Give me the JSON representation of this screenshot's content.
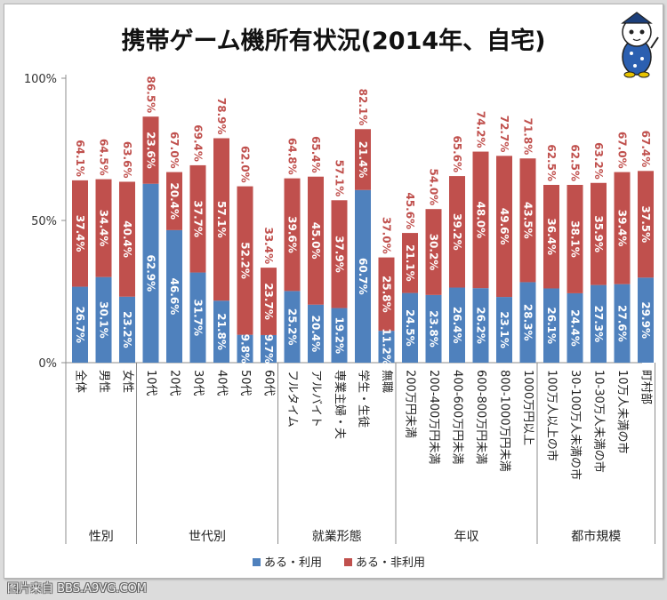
{
  "chart_data": {
    "type": "bar",
    "stacked": true,
    "title": "携帯ゲーム機所有状況(2014年、自宅)",
    "y_axis": {
      "ticks": [
        "100%",
        "50%",
        "0%"
      ],
      "ylim": [
        0,
        100
      ]
    },
    "series": [
      {
        "name": "ある・利用",
        "color": "#4f81bd"
      },
      {
        "name": "ある・非利用",
        "color": "#c0504d"
      }
    ],
    "categories": [
      "全体",
      "男性",
      "女性",
      "10代",
      "20代",
      "30代",
      "40代",
      "50代",
      "60代",
      "フルタイム",
      "アルバイト",
      "専業主婦・夫",
      "学生・生徒",
      "無職",
      "200万円未満",
      "200-400万円未満",
      "400-600万円未満",
      "600-800万円未満",
      "800-1000万円未満",
      "1000万円以上",
      "100万人以上の市",
      "30-100万人未満の市",
      "10-30万人未満の市",
      "10万人未満の市",
      "町村部"
    ],
    "values_use": [
      26.7,
      30.1,
      23.2,
      62.9,
      46.6,
      31.7,
      21.8,
      9.8,
      9.7,
      25.2,
      20.4,
      19.2,
      60.7,
      11.2,
      24.5,
      23.8,
      26.4,
      26.2,
      23.1,
      28.3,
      26.1,
      24.4,
      27.3,
      27.6,
      29.9
    ],
    "values_nonuse": [
      37.4,
      34.4,
      40.4,
      23.6,
      20.4,
      37.7,
      57.1,
      52.2,
      23.7,
      39.6,
      45.0,
      37.9,
      21.4,
      25.8,
      21.1,
      30.2,
      39.2,
      48.0,
      49.6,
      43.5,
      36.4,
      38.1,
      35.9,
      39.4,
      37.5
    ],
    "labels_use": [
      "26.7%",
      "30.1%",
      "23.2%",
      "62.9%",
      "46.6%",
      "31.7%",
      "21.8%",
      "9.8%",
      "9.7%",
      "25.2%",
      "20.4%",
      "19.2%",
      "60.7%",
      "11.2%",
      "24.5%",
      "23.8%",
      "26.4%",
      "26.2%",
      "23.1%",
      "28.3%",
      "26.1%",
      "24.4%",
      "27.3%",
      "27.6%",
      "29.9%"
    ],
    "labels_nonuse": [
      "37.4%",
      "34.4%",
      "40.4%",
      "23.6%",
      "20.4%",
      "37.7%",
      "57.1%",
      "52.2%",
      "23.7%",
      "39.6%",
      "45.0%",
      "37.9%",
      "21.4%",
      "25.8%",
      "21.1%",
      "30.2%",
      "39.2%",
      "48.0%",
      "49.6%",
      "43.5%",
      "36.4%",
      "38.1%",
      "35.9%",
      "39.4%",
      "37.5%"
    ],
    "labels_total": [
      "64.1%",
      "64.5%",
      "63.6%",
      "86.5%",
      "67.0%",
      "69.4%",
      "78.9%",
      "62.0%",
      "33.4%",
      "64.8%",
      "65.4%",
      "57.1%",
      "82.1%",
      "37.0%",
      "45.6%",
      "54.0%",
      "65.6%",
      "74.2%",
      "72.7%",
      "71.8%",
      "62.5%",
      "62.5%",
      "63.2%",
      "67.0%",
      "67.4%"
    ],
    "groups": [
      {
        "name": "性別",
        "start": 0,
        "end": 2
      },
      {
        "name": "世代別",
        "start": 3,
        "end": 8
      },
      {
        "name": "就業形態",
        "start": 9,
        "end": 13
      },
      {
        "name": "年収",
        "start": 14,
        "end": 19
      },
      {
        "name": "都市規模",
        "start": 20,
        "end": 24
      }
    ],
    "legend_position": "bottom",
    "grid": false
  },
  "watermark": "图片来自 BBS.A9VG.COM",
  "colors": {
    "use": "#4f81bd",
    "nonuse": "#c0504d",
    "total_text": "#c0504d"
  }
}
